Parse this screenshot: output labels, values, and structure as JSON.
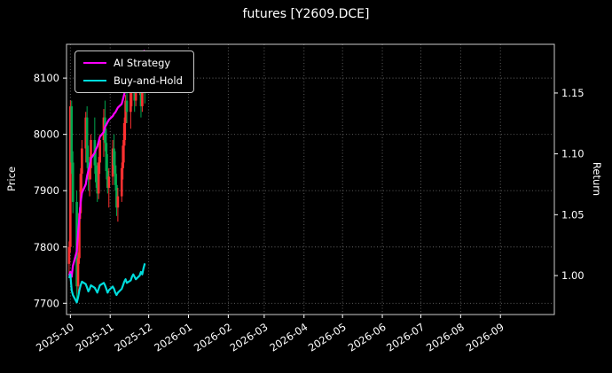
{
  "window": {
    "title": "futures [Y2609.DCE]"
  },
  "chart_data": {
    "type": "candlestick",
    "title": "futures [Y2609.DCE]",
    "ylabel_left": "Price",
    "ylabel_right": "Return",
    "left_axis_ticks": [
      7700,
      7800,
      7900,
      8000,
      8100
    ],
    "right_axis_ticks": [
      "1.00",
      "1.05",
      "1.10",
      "1.15"
    ],
    "right_axis_tick_values": [
      1.0,
      1.05,
      1.1,
      1.15
    ],
    "x_ticks": [
      "2025-10",
      "2025-11",
      "2025-12",
      "2026-01",
      "2026-02",
      "2026-03",
      "2026-04",
      "2026-05",
      "2026-06",
      "2026-07",
      "2026-08",
      "2026-09"
    ],
    "price_range": [
      7680,
      8160
    ],
    "return_range": [
      0.968,
      1.19
    ],
    "x_start": "2025-09-28",
    "x_span_days": 380,
    "grid": true,
    "grid_style": "dotted",
    "legend_position": "upper-left",
    "background_color": "#000000",
    "grid_color": "#666666",
    "spine_color": "#cccccc",
    "up_color": "#ff3030",
    "down_color": "#00a84f",
    "candles": [
      [
        "2025-09-30",
        7770,
        7810,
        7750,
        7800
      ],
      [
        "2025-10-01",
        7800,
        8060,
        7790,
        8050
      ],
      [
        "2025-10-02",
        8050,
        8060,
        7930,
        7950
      ],
      [
        "2025-10-03",
        7950,
        7970,
        7860,
        7880
      ],
      [
        "2025-10-06",
        7880,
        7900,
        7705,
        7730
      ],
      [
        "2025-10-07",
        7730,
        7790,
        7715,
        7780
      ],
      [
        "2025-10-08",
        7780,
        7870,
        7770,
        7860
      ],
      [
        "2025-10-09",
        7860,
        7940,
        7850,
        7930
      ],
      [
        "2025-10-10",
        7930,
        7990,
        7900,
        7975
      ],
      [
        "2025-10-13",
        7975,
        8040,
        7950,
        8030
      ],
      [
        "2025-10-14",
        8030,
        8050,
        7940,
        7950
      ],
      [
        "2025-10-15",
        7950,
        7980,
        7900,
        7920
      ],
      [
        "2025-10-16",
        7920,
        7960,
        7890,
        7940
      ],
      [
        "2025-10-17",
        7940,
        8000,
        7920,
        7990
      ],
      [
        "2025-10-20",
        7990,
        8030,
        7930,
        7945
      ],
      [
        "2025-10-21",
        7945,
        7975,
        7905,
        7915
      ],
      [
        "2025-10-22",
        7915,
        7950,
        7880,
        7895
      ],
      [
        "2025-10-23",
        7895,
        7960,
        7885,
        7950
      ],
      [
        "2025-10-24",
        7950,
        8000,
        7930,
        7990
      ],
      [
        "2025-10-27",
        7990,
        8045,
        7960,
        8030
      ],
      [
        "2025-10-28",
        8030,
        8060,
        7970,
        7985
      ],
      [
        "2025-10-29",
        7985,
        8010,
        7920,
        7935
      ],
      [
        "2025-10-30",
        7935,
        7965,
        7895,
        7905
      ],
      [
        "2025-10-31",
        7905,
        7940,
        7870,
        7925
      ],
      [
        "2025-11-03",
        7925,
        7990,
        7910,
        7975
      ],
      [
        "2025-11-04",
        7975,
        8000,
        7930,
        7945
      ],
      [
        "2025-11-05",
        7945,
        7970,
        7900,
        7910
      ],
      [
        "2025-11-06",
        7910,
        7930,
        7855,
        7870
      ],
      [
        "2025-11-07",
        7870,
        7905,
        7845,
        7890
      ],
      [
        "2025-11-10",
        7890,
        7950,
        7880,
        7940
      ],
      [
        "2025-11-11",
        7940,
        7990,
        7920,
        7980
      ],
      [
        "2025-11-12",
        7980,
        8030,
        7950,
        8020
      ],
      [
        "2025-11-13",
        8020,
        8070,
        7990,
        8060
      ],
      [
        "2025-11-14",
        8060,
        8100,
        8020,
        8040
      ],
      [
        "2025-11-17",
        8040,
        8090,
        8010,
        8080
      ],
      [
        "2025-11-18",
        8080,
        8130,
        8050,
        8120
      ],
      [
        "2025-11-19",
        8120,
        8140,
        8080,
        8130
      ],
      [
        "2025-11-20",
        8130,
        8135,
        8040,
        8060
      ],
      [
        "2025-11-21",
        8060,
        8120,
        8050,
        8100
      ],
      [
        "2025-11-24",
        8100,
        8130,
        8070,
        8110
      ],
      [
        "2025-11-25",
        8110,
        8125,
        8030,
        8050
      ],
      [
        "2025-11-26",
        8050,
        8110,
        8040,
        8095
      ],
      [
        "2025-11-27",
        8095,
        8140,
        8085,
        8125
      ],
      [
        "2025-11-28",
        8125,
        8135,
        8055,
        8075
      ]
    ],
    "series": [
      {
        "name": "AI Strategy",
        "color": "#ff00ff",
        "axis": "return",
        "values": [
          1.0,
          1.003,
          0.999,
          1.008,
          1.02,
          1.035,
          1.048,
          1.06,
          1.068,
          1.075,
          1.082,
          1.086,
          1.09,
          1.096,
          1.101,
          1.104,
          1.106,
          1.11,
          1.114,
          1.118,
          1.122,
          1.124,
          1.126,
          1.128,
          1.131,
          1.133,
          1.134,
          1.136,
          1.138,
          1.141,
          1.145,
          1.149,
          1.153,
          1.156,
          1.159,
          1.163,
          1.167,
          1.169,
          1.172,
          1.176,
          1.179,
          1.181,
          1.184,
          1.185
        ]
      },
      {
        "name": "Buy-and-Hold",
        "color": "#00dddd",
        "axis": "return",
        "values": [
          0.998,
          1.001,
          0.988,
          0.984,
          0.978,
          0.982,
          0.988,
          0.992,
          0.995,
          0.993,
          0.99,
          0.987,
          0.989,
          0.992,
          0.99,
          0.988,
          0.986,
          0.989,
          0.992,
          0.994,
          0.992,
          0.989,
          0.986,
          0.988,
          0.991,
          0.989,
          0.986,
          0.984,
          0.986,
          0.989,
          0.992,
          0.995,
          0.997,
          0.994,
          0.996,
          0.999,
          1.001,
          0.999,
          0.997,
          1.0,
          1.003,
          1.001,
          1.006,
          1.01
        ]
      }
    ]
  }
}
